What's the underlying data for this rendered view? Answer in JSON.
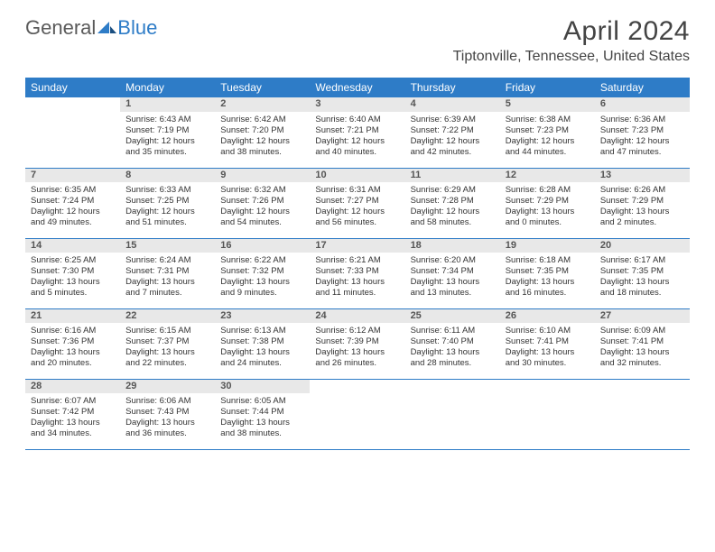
{
  "logo": {
    "text1": "General",
    "text2": "Blue"
  },
  "title": "April 2024",
  "location": "Tiptonville, Tennessee, United States",
  "colors": {
    "accent": "#2e7cc7",
    "header_bg": "#2e7cc7",
    "daynum_bg": "#e8e8e8",
    "text": "#333333",
    "divider": "#2e7cc7"
  },
  "day_names": [
    "Sunday",
    "Monday",
    "Tuesday",
    "Wednesday",
    "Thursday",
    "Friday",
    "Saturday"
  ],
  "weeks": [
    {
      "nums": [
        "",
        "1",
        "2",
        "3",
        "4",
        "5",
        "6"
      ],
      "cells": [
        "",
        "Sunrise: 6:43 AM\nSunset: 7:19 PM\nDaylight: 12 hours and 35 minutes.",
        "Sunrise: 6:42 AM\nSunset: 7:20 PM\nDaylight: 12 hours and 38 minutes.",
        "Sunrise: 6:40 AM\nSunset: 7:21 PM\nDaylight: 12 hours and 40 minutes.",
        "Sunrise: 6:39 AM\nSunset: 7:22 PM\nDaylight: 12 hours and 42 minutes.",
        "Sunrise: 6:38 AM\nSunset: 7:23 PM\nDaylight: 12 hours and 44 minutes.",
        "Sunrise: 6:36 AM\nSunset: 7:23 PM\nDaylight: 12 hours and 47 minutes."
      ]
    },
    {
      "nums": [
        "7",
        "8",
        "9",
        "10",
        "11",
        "12",
        "13"
      ],
      "cells": [
        "Sunrise: 6:35 AM\nSunset: 7:24 PM\nDaylight: 12 hours and 49 minutes.",
        "Sunrise: 6:33 AM\nSunset: 7:25 PM\nDaylight: 12 hours and 51 minutes.",
        "Sunrise: 6:32 AM\nSunset: 7:26 PM\nDaylight: 12 hours and 54 minutes.",
        "Sunrise: 6:31 AM\nSunset: 7:27 PM\nDaylight: 12 hours and 56 minutes.",
        "Sunrise: 6:29 AM\nSunset: 7:28 PM\nDaylight: 12 hours and 58 minutes.",
        "Sunrise: 6:28 AM\nSunset: 7:29 PM\nDaylight: 13 hours and 0 minutes.",
        "Sunrise: 6:26 AM\nSunset: 7:29 PM\nDaylight: 13 hours and 2 minutes."
      ]
    },
    {
      "nums": [
        "14",
        "15",
        "16",
        "17",
        "18",
        "19",
        "20"
      ],
      "cells": [
        "Sunrise: 6:25 AM\nSunset: 7:30 PM\nDaylight: 13 hours and 5 minutes.",
        "Sunrise: 6:24 AM\nSunset: 7:31 PM\nDaylight: 13 hours and 7 minutes.",
        "Sunrise: 6:22 AM\nSunset: 7:32 PM\nDaylight: 13 hours and 9 minutes.",
        "Sunrise: 6:21 AM\nSunset: 7:33 PM\nDaylight: 13 hours and 11 minutes.",
        "Sunrise: 6:20 AM\nSunset: 7:34 PM\nDaylight: 13 hours and 13 minutes.",
        "Sunrise: 6:18 AM\nSunset: 7:35 PM\nDaylight: 13 hours and 16 minutes.",
        "Sunrise: 6:17 AM\nSunset: 7:35 PM\nDaylight: 13 hours and 18 minutes."
      ]
    },
    {
      "nums": [
        "21",
        "22",
        "23",
        "24",
        "25",
        "26",
        "27"
      ],
      "cells": [
        "Sunrise: 6:16 AM\nSunset: 7:36 PM\nDaylight: 13 hours and 20 minutes.",
        "Sunrise: 6:15 AM\nSunset: 7:37 PM\nDaylight: 13 hours and 22 minutes.",
        "Sunrise: 6:13 AM\nSunset: 7:38 PM\nDaylight: 13 hours and 24 minutes.",
        "Sunrise: 6:12 AM\nSunset: 7:39 PM\nDaylight: 13 hours and 26 minutes.",
        "Sunrise: 6:11 AM\nSunset: 7:40 PM\nDaylight: 13 hours and 28 minutes.",
        "Sunrise: 6:10 AM\nSunset: 7:41 PM\nDaylight: 13 hours and 30 minutes.",
        "Sunrise: 6:09 AM\nSunset: 7:41 PM\nDaylight: 13 hours and 32 minutes."
      ]
    },
    {
      "nums": [
        "28",
        "29",
        "30",
        "",
        "",
        "",
        ""
      ],
      "cells": [
        "Sunrise: 6:07 AM\nSunset: 7:42 PM\nDaylight: 13 hours and 34 minutes.",
        "Sunrise: 6:06 AM\nSunset: 7:43 PM\nDaylight: 13 hours and 36 minutes.",
        "Sunrise: 6:05 AM\nSunset: 7:44 PM\nDaylight: 13 hours and 38 minutes.",
        "",
        "",
        "",
        ""
      ]
    }
  ]
}
